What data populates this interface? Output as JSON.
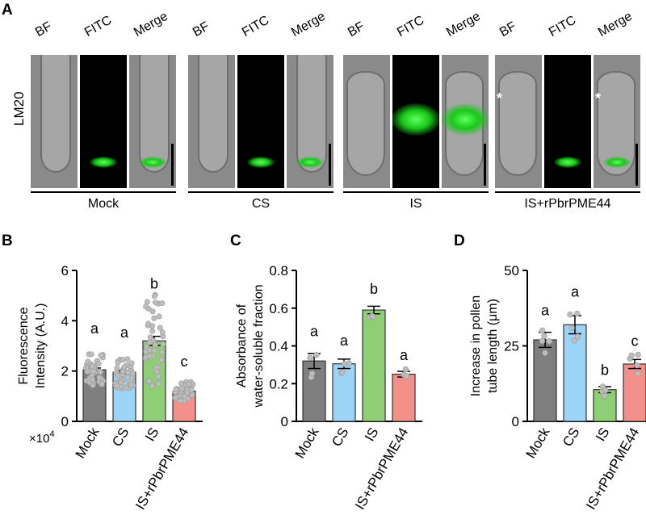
{
  "panel_labels": {
    "a": "A",
    "b": "B",
    "c": "C",
    "d": "D"
  },
  "panelA": {
    "row_label": "LM20",
    "column_labels": {
      "bf": "BF",
      "fitc": "FITC",
      "merge": "Merge"
    },
    "groups": [
      {
        "name": "Mock",
        "marker": ""
      },
      {
        "name": "CS",
        "marker": ""
      },
      {
        "name": "IS",
        "marker": ""
      },
      {
        "name": "IS+rPbrPME44",
        "marker": "*"
      }
    ]
  },
  "axis_multiplier": "×10",
  "axis_exponent": "4",
  "chart_data": [
    {
      "panel": "B",
      "type": "bar",
      "ylabel_lines": [
        "Fluorescence",
        "Intensity (A.U.)"
      ],
      "categories": [
        "Mock",
        "CS",
        "IS",
        "IS+rPbrPME44"
      ],
      "values": [
        2.05,
        1.95,
        3.2,
        1.2
      ],
      "errors": [
        0.07,
        0.07,
        0.18,
        0.05
      ],
      "letters": [
        "a",
        "a",
        "b",
        "c"
      ],
      "colors": [
        "#7f7f7f",
        "#9cd4f8",
        "#8ecf76",
        "#f4908a"
      ],
      "ylim": [
        0,
        6
      ],
      "yticks": [
        "0",
        "2",
        "4",
        "6"
      ]
    },
    {
      "panel": "C",
      "type": "bar",
      "ylabel_lines": [
        "Absorbance of",
        "water-soluble fraction"
      ],
      "categories": [
        "Mock",
        "CS",
        "IS",
        "IS+rPbrPME44"
      ],
      "values": [
        0.32,
        0.305,
        0.59,
        0.25
      ],
      "errors": [
        0.04,
        0.025,
        0.02,
        0.015
      ],
      "letters": [
        "a",
        "a",
        "b",
        "a"
      ],
      "colors": [
        "#7f7f7f",
        "#9cd4f8",
        "#8ecf76",
        "#f4908a"
      ],
      "ylim": [
        0,
        0.8
      ],
      "yticks": [
        "0",
        "0.2",
        "0.4",
        "0.6",
        "0.8"
      ]
    },
    {
      "panel": "D",
      "type": "bar",
      "ylabel_lines": [
        "Increase in pollen",
        "tube length (μm)"
      ],
      "categories": [
        "Mock",
        "CS",
        "IS",
        "IS+rPbrPME44"
      ],
      "values": [
        27,
        32,
        10.5,
        19
      ],
      "errors": [
        2.5,
        3,
        1,
        1.5
      ],
      "letters": [
        "a",
        "a",
        "b",
        "c"
      ],
      "colors": [
        "#7f7f7f",
        "#9cd4f8",
        "#8ecf76",
        "#f4908a"
      ],
      "ylim": [
        0,
        50
      ],
      "yticks": [
        "0",
        "25",
        "50"
      ]
    }
  ]
}
